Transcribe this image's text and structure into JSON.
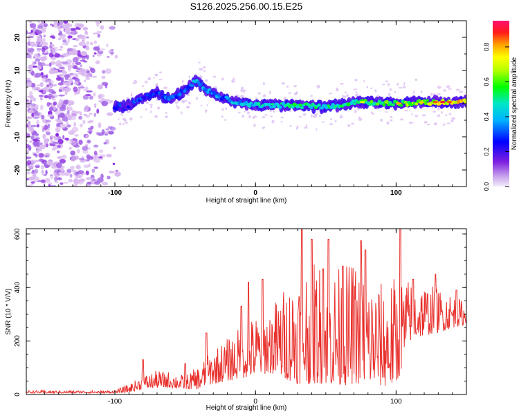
{
  "title": "S126.2025.256.00.15.E25",
  "colors": {
    "snr_line": "#e8302c",
    "axis": "#000000",
    "scatter_purple_light": "#d9b8f0",
    "scatter_purple": "#8a2be2"
  },
  "chart_data": [
    {
      "type": "heatmap",
      "name": "spectrogram",
      "xlabel": "Height of straight line (km)",
      "ylabel": "Frequency (Hz)",
      "xlim": [
        -163,
        150
      ],
      "ylim": [
        -25,
        25
      ],
      "xticks": [
        -100,
        0,
        100
      ],
      "yticks": [
        -20,
        -10,
        0,
        10,
        20
      ],
      "xtick_labels": [
        "-100",
        "0",
        "100"
      ],
      "ytick_labels": [
        "-20",
        "-10",
        "0",
        "10",
        "20"
      ],
      "colorbar": {
        "label": "Normalized spectral amplitude",
        "range": [
          0.0,
          0.95
        ],
        "ticks": [
          0.0,
          0.2,
          0.4,
          0.6,
          0.8
        ],
        "tick_labels": [
          "0.0",
          "0.2",
          "0.4",
          "0.6",
          "0.8"
        ]
      },
      "ridge": {
        "x": [
          -100,
          -90,
          -80,
          -70,
          -60,
          -50,
          -42,
          -35,
          -25,
          -15,
          0,
          25,
          50,
          75,
          100,
          125,
          150
        ],
        "y": [
          -1,
          -0.5,
          2,
          3,
          1.5,
          4,
          7,
          4,
          2,
          0.5,
          -0.5,
          -0.5,
          -1,
          0.5,
          0,
          0.5,
          0.5
        ],
        "amplitude": [
          0.25,
          0.25,
          0.3,
          0.3,
          0.3,
          0.3,
          0.4,
          0.35,
          0.35,
          0.4,
          0.45,
          0.5,
          0.5,
          0.55,
          0.6,
          0.7,
          0.8
        ]
      }
    },
    {
      "type": "line",
      "name": "snr",
      "xlabel": "Height of straight line (km)",
      "ylabel": "SNR (10 * V/V)",
      "xlim": [
        -163,
        150
      ],
      "ylim": [
        0,
        620
      ],
      "xticks": [
        -100,
        0,
        100
      ],
      "yticks": [
        0,
        200,
        400,
        600
      ],
      "xtick_labels": [
        "-100",
        "0",
        "100"
      ],
      "ytick_labels": [
        "0",
        "200",
        "400",
        "600"
      ],
      "envelope": {
        "x": [
          -163,
          -100,
          -90,
          -80,
          -70,
          -60,
          -50,
          -40,
          -35,
          -30,
          -20,
          -10,
          0,
          10,
          20,
          30,
          40,
          50,
          60,
          70,
          80,
          90,
          100,
          110,
          120,
          130,
          140,
          150
        ],
        "low": [
          5,
          5,
          8,
          20,
          25,
          25,
          20,
          20,
          30,
          40,
          50,
          60,
          70,
          80,
          60,
          40,
          40,
          40,
          30,
          40,
          40,
          30,
          30,
          200,
          220,
          230,
          250,
          260
        ],
        "high": [
          15,
          15,
          40,
          70,
          90,
          85,
          70,
          110,
          140,
          170,
          210,
          260,
          300,
          330,
          400,
          480,
          530,
          480,
          480,
          500,
          450,
          420,
          450,
          430,
          420,
          400,
          380,
          340
        ],
        "peaks": [
          [
            -80,
            130
          ],
          [
            -50,
            115
          ],
          [
            -35,
            230
          ],
          [
            -10,
            330
          ],
          [
            -5,
            420
          ],
          [
            5,
            430
          ],
          [
            33,
            620
          ],
          [
            40,
            580
          ],
          [
            48,
            470
          ],
          [
            52,
            580
          ],
          [
            62,
            480
          ],
          [
            75,
            575
          ],
          [
            78,
            540
          ],
          [
            103,
            620
          ],
          [
            112,
            430
          ],
          [
            128,
            450
          ],
          [
            143,
            390
          ]
        ]
      }
    }
  ]
}
